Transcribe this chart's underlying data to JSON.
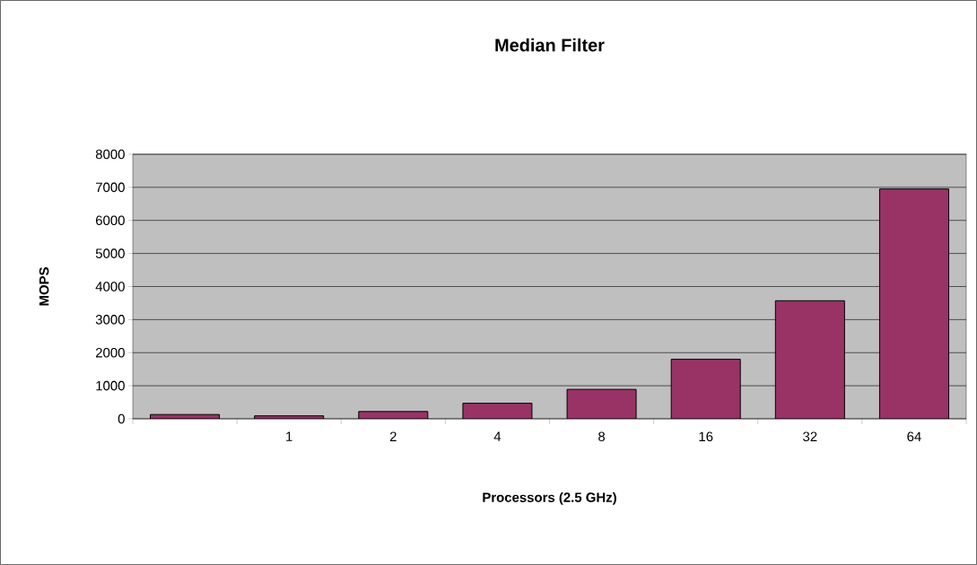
{
  "chart_data": {
    "type": "bar",
    "title": "Median Filter",
    "xlabel": "Processors (2.5 GHz)",
    "ylabel": "MOPS",
    "categories": [
      null,
      "1",
      "2",
      "4",
      "8",
      "16",
      "32",
      "64"
    ],
    "values": [
      130,
      90,
      220,
      470,
      890,
      1800,
      3570,
      6950
    ],
    "color": "#993366",
    "ylim": [
      0,
      8000
    ],
    "yticks": [
      0,
      1000,
      2000,
      3000,
      4000,
      5000,
      6000,
      7000,
      8000
    ],
    "grid": "y"
  }
}
